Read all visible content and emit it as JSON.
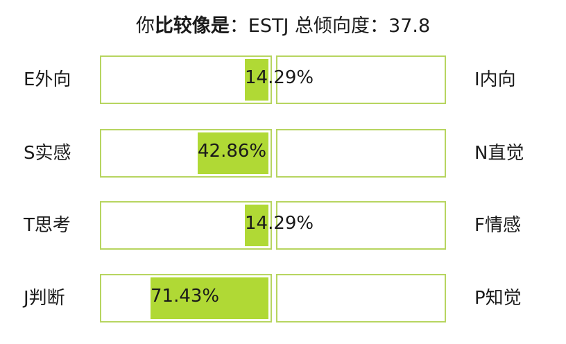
{
  "header": {
    "prefix": "你",
    "emphasis": "比较像是",
    "suffix": "：ESTJ 总倾向度：37.8"
  },
  "chart_data": {
    "type": "bar",
    "title": "你比较像是：ESTJ 总倾向度：37.8",
    "rows": [
      {
        "left_label": "E外向",
        "right_label": "I内向",
        "value": 14.29,
        "value_label": "14.29%"
      },
      {
        "left_label": "S实感",
        "right_label": "N直觉",
        "value": 42.86,
        "value_label": "42.86%"
      },
      {
        "left_label": "T思考",
        "right_label": "F情感",
        "value": 14.29,
        "value_label": "14.29%"
      },
      {
        "left_label": "J判断",
        "right_label": "P知觉",
        "value": 71.43,
        "value_label": "71.43%"
      }
    ],
    "xlim": [
      0,
      100
    ]
  },
  "colors": {
    "bar_fill": "#b0d935",
    "box_border": "#b7d560"
  }
}
